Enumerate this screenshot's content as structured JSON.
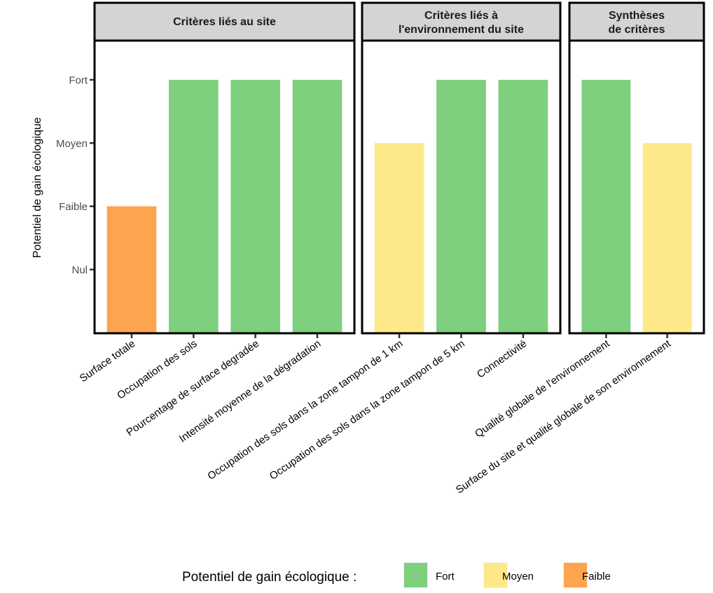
{
  "chart_data": {
    "type": "bar",
    "ylabel": "Potentiel de gain écologique",
    "xlabel": "",
    "y_levels": [
      "Nul",
      "Faible",
      "Moyen",
      "Fort"
    ],
    "y_values": {
      "Nul": 0,
      "Faible": 1,
      "Moyen": 2,
      "Fort": 3
    },
    "ylim": [
      -0.75,
      3.6
    ],
    "grid": false,
    "panels": [
      {
        "title_lines": [
          "Critères liés au site"
        ],
        "categories": [
          "Surface totale",
          "Occupation des sols",
          "Pourcentage de surface degradée",
          "Intensité moyenne de la dégradation"
        ],
        "levels": [
          "Faible",
          "Fort",
          "Fort",
          "Fort"
        ]
      },
      {
        "title_lines": [
          "Critères liés à",
          "l'environnement du site"
        ],
        "categories": [
          "Occupation des sols dans la zone tampon de 1 km",
          "Occupation des sols dans la zone tampon de 5 km",
          "Connectivité"
        ],
        "levels": [
          "Moyen",
          "Fort",
          "Fort"
        ]
      },
      {
        "title_lines": [
          "Synthèses",
          "de critères"
        ],
        "categories": [
          "Qualité globale de l'environnement",
          "Surface du site et qualité globale de son environnement"
        ],
        "levels": [
          "Fort",
          "Moyen"
        ]
      }
    ],
    "legend": {
      "title": "Potentiel de gain écologique :",
      "position": "bottom",
      "items": [
        {
          "label": "Fort",
          "color": "#7ecf7e"
        },
        {
          "label": "Moyen",
          "color": "#fee98a"
        },
        {
          "label": "Faible",
          "color": "#fda54e"
        }
      ]
    }
  },
  "colors": {
    "Fort": "#7ecf7e",
    "Moyen": "#fee98a",
    "Faible": "#fda54e",
    "strip": "#d4d4d4",
    "frame": "#000000",
    "tick": "#333333"
  }
}
